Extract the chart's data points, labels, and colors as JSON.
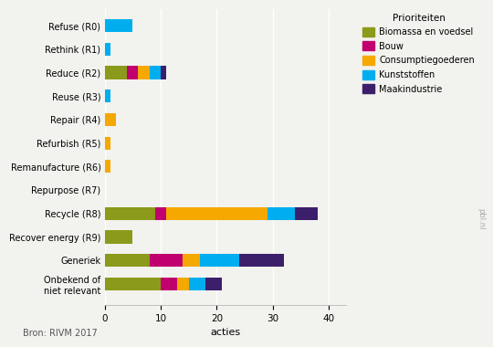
{
  "categories": [
    "Refuse (R0)",
    "Rethink (R1)",
    "Reduce (R2)",
    "Reuse (R3)",
    "Repair (R4)",
    "Refurbish (R5)",
    "Remanufacture (R6)",
    "Repurpose (R7)",
    "Recycle (R8)",
    "Recover energy (R9)",
    "Generiek",
    "Onbekend of\nniet relevant"
  ],
  "series": {
    "Biomassa en voedsel": [
      0,
      0,
      4,
      0,
      0,
      0,
      0,
      0,
      9,
      5,
      8,
      10
    ],
    "Bouw": [
      0,
      0,
      2,
      0,
      0,
      0,
      0,
      0,
      2,
      0,
      6,
      3
    ],
    "Consumptiegoederen": [
      0,
      0,
      2,
      0,
      2,
      1,
      1,
      0,
      18,
      0,
      3,
      2
    ],
    "Kunststoffen": [
      5,
      1,
      2,
      1,
      0,
      0,
      0,
      0,
      5,
      0,
      7,
      3
    ],
    "Maakindustrie": [
      0,
      0,
      1,
      0,
      0,
      0,
      0,
      0,
      4,
      0,
      8,
      3
    ]
  },
  "colors": {
    "Biomassa en voedsel": "#8B9A1A",
    "Bouw": "#C0006E",
    "Consumptiegoederen": "#F5A800",
    "Kunststoffen": "#00AEEF",
    "Maakindustrie": "#3B1F6B"
  },
  "xlim": [
    0,
    43
  ],
  "xticks": [
    0,
    10,
    20,
    30,
    40
  ],
  "xlabel": "acties",
  "legend_title": "Prioriteiten",
  "source": "Bron: RIVM 2017",
  "watermark": "pbl.nl",
  "bar_height": 0.55,
  "background_color": "#f2f2ee"
}
